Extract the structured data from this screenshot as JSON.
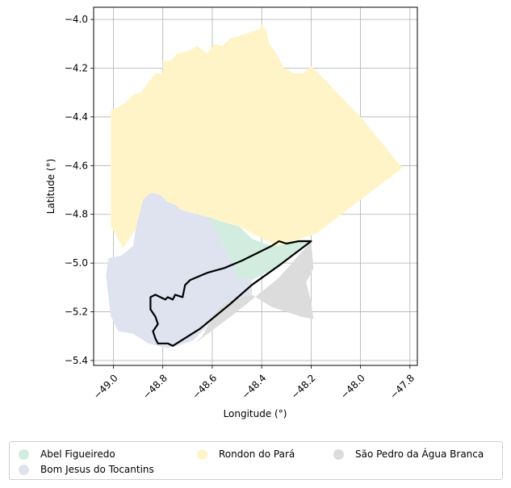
{
  "chart_data": {
    "type": "map",
    "xlabel": "Longitude (°)",
    "ylabel": "Latitude (°)",
    "xlim": [
      -49.08,
      -47.77
    ],
    "ylim": [
      -5.42,
      -3.95
    ],
    "xticks": [
      -49.0,
      -48.8,
      -48.6,
      -48.4,
      -48.2,
      -48.0,
      -47.8
    ],
    "xtick_labels": [
      "−49.0",
      "−48.8",
      "−48.6",
      "−48.4",
      "−48.2",
      "−48.0",
      "−47.8"
    ],
    "yticks": [
      -4.0,
      -4.2,
      -4.4,
      -4.6,
      -4.8,
      -5.0,
      -5.2,
      -5.4
    ],
    "ytick_labels": [
      "−4.0",
      "−4.2",
      "−4.4",
      "−4.6",
      "−4.8",
      "−5.0",
      "−5.2",
      "−5.4"
    ],
    "grid": true,
    "legend_position": "below",
    "regions": [
      {
        "name": "Rondon do Pará",
        "color": "#fff4c7",
        "polygon": [
          [
            -49.01,
            -4.37
          ],
          [
            -48.98,
            -4.36
          ],
          [
            -48.95,
            -4.34
          ],
          [
            -48.92,
            -4.31
          ],
          [
            -48.89,
            -4.3
          ],
          [
            -48.86,
            -4.26
          ],
          [
            -48.83,
            -4.22
          ],
          [
            -48.8,
            -4.22
          ],
          [
            -48.8,
            -4.17
          ],
          [
            -48.77,
            -4.17
          ],
          [
            -48.74,
            -4.14
          ],
          [
            -48.7,
            -4.13
          ],
          [
            -48.66,
            -4.11
          ],
          [
            -48.62,
            -4.14
          ],
          [
            -48.59,
            -4.1
          ],
          [
            -48.56,
            -4.11
          ],
          [
            -48.53,
            -4.08
          ],
          [
            -48.5,
            -4.07
          ],
          [
            -48.47,
            -4.06
          ],
          [
            -48.44,
            -4.05
          ],
          [
            -48.41,
            -4.04
          ],
          [
            -48.4,
            -4.02
          ],
          [
            -48.38,
            -4.05
          ],
          [
            -48.37,
            -4.1
          ],
          [
            -48.34,
            -4.14
          ],
          [
            -48.31,
            -4.2
          ],
          [
            -48.27,
            -4.22
          ],
          [
            -48.23,
            -4.22
          ],
          [
            -48.2,
            -4.19
          ],
          [
            -48.0,
            -4.4
          ],
          [
            -47.83,
            -4.61
          ],
          [
            -48.0,
            -4.74
          ],
          [
            -48.18,
            -4.88
          ],
          [
            -48.34,
            -4.93
          ],
          [
            -48.49,
            -4.85
          ],
          [
            -48.62,
            -4.81
          ],
          [
            -48.73,
            -4.78
          ],
          [
            -48.88,
            -4.74
          ],
          [
            -48.91,
            -4.86
          ],
          [
            -48.96,
            -4.94
          ],
          [
            -49.01,
            -4.85
          ]
        ]
      },
      {
        "name": "São Pedro da Água Branca",
        "color": "#dcdcdc",
        "polygon": [
          [
            -48.2,
            -4.91
          ],
          [
            -48.19,
            -5.02
          ],
          [
            -48.22,
            -5.08
          ],
          [
            -48.2,
            -5.16
          ],
          [
            -48.19,
            -5.23
          ],
          [
            -48.24,
            -5.22
          ],
          [
            -48.3,
            -5.2
          ],
          [
            -48.36,
            -5.18
          ],
          [
            -48.44,
            -5.13
          ],
          [
            -48.52,
            -5.15
          ],
          [
            -48.57,
            -5.18
          ],
          [
            -48.6,
            -5.22
          ],
          [
            -48.62,
            -5.26
          ],
          [
            -48.64,
            -5.3
          ],
          [
            -48.67,
            -5.33
          ],
          [
            -48.74,
            -5.34
          ],
          [
            -48.8,
            -5.35
          ],
          [
            -48.67,
            -5.33
          ],
          [
            -48.5,
            -5.2
          ],
          [
            -48.33,
            -5.06
          ]
        ]
      },
      {
        "name": "Abel Figueiredo",
        "color": "#d2eddf",
        "polygon": [
          [
            -48.62,
            -4.81
          ],
          [
            -48.56,
            -4.83
          ],
          [
            -48.49,
            -4.85
          ],
          [
            -48.44,
            -4.9
          ],
          [
            -48.39,
            -4.92
          ],
          [
            -48.34,
            -4.93
          ],
          [
            -48.27,
            -4.91
          ],
          [
            -48.2,
            -4.91
          ],
          [
            -48.31,
            -5.0
          ],
          [
            -48.44,
            -5.07
          ],
          [
            -48.5,
            -5.06
          ],
          [
            -48.52,
            -5.0
          ],
          [
            -48.55,
            -4.94
          ],
          [
            -48.58,
            -4.87
          ]
        ]
      },
      {
        "name": "Bom Jesus do Tocantins",
        "color": "#dfe3f0",
        "polygon": [
          [
            -48.88,
            -4.74
          ],
          [
            -48.85,
            -4.71
          ],
          [
            -48.81,
            -4.72
          ],
          [
            -48.78,
            -4.75
          ],
          [
            -48.75,
            -4.76
          ],
          [
            -48.73,
            -4.78
          ],
          [
            -48.66,
            -4.8
          ],
          [
            -48.62,
            -4.81
          ],
          [
            -48.58,
            -4.87
          ],
          [
            -48.55,
            -4.94
          ],
          [
            -48.52,
            -5.0
          ],
          [
            -48.5,
            -5.06
          ],
          [
            -48.44,
            -5.07
          ],
          [
            -48.44,
            -5.13
          ],
          [
            -48.52,
            -5.15
          ],
          [
            -48.58,
            -5.19
          ],
          [
            -48.63,
            -5.27
          ],
          [
            -48.68,
            -5.32
          ],
          [
            -48.78,
            -5.35
          ],
          [
            -48.86,
            -5.33
          ],
          [
            -48.92,
            -5.29
          ],
          [
            -48.98,
            -5.28
          ],
          [
            -49.01,
            -5.22
          ],
          [
            -49.02,
            -5.14
          ],
          [
            -49.03,
            -5.05
          ],
          [
            -49.02,
            -4.98
          ],
          [
            -48.97,
            -4.97
          ],
          [
            -48.92,
            -4.93
          ],
          [
            -48.91,
            -4.86
          ]
        ]
      }
    ],
    "outline": {
      "color": "#000000",
      "polygon": [
        [
          -48.2,
          -4.91
        ],
        [
          -48.25,
          -4.91
        ],
        [
          -48.3,
          -4.92
        ],
        [
          -48.33,
          -4.91
        ],
        [
          -48.36,
          -4.93
        ],
        [
          -48.4,
          -4.95
        ],
        [
          -48.48,
          -4.99
        ],
        [
          -48.55,
          -5.02
        ],
        [
          -48.62,
          -5.04
        ],
        [
          -48.69,
          -5.07
        ],
        [
          -48.71,
          -5.09
        ],
        [
          -48.72,
          -5.14
        ],
        [
          -48.75,
          -5.13
        ],
        [
          -48.76,
          -5.15
        ],
        [
          -48.78,
          -5.14
        ],
        [
          -48.79,
          -5.15
        ],
        [
          -48.83,
          -5.13
        ],
        [
          -48.85,
          -5.14
        ],
        [
          -48.85,
          -5.19
        ],
        [
          -48.83,
          -5.22
        ],
        [
          -48.82,
          -5.25
        ],
        [
          -48.84,
          -5.28
        ],
        [
          -48.83,
          -5.31
        ],
        [
          -48.82,
          -5.33
        ],
        [
          -48.78,
          -5.33
        ],
        [
          -48.76,
          -5.34
        ],
        [
          -48.65,
          -5.27
        ],
        [
          -48.53,
          -5.17
        ],
        [
          -48.44,
          -5.09
        ],
        [
          -48.33,
          -5.01
        ]
      ]
    }
  },
  "legend": {
    "items": [
      {
        "label": "Abel Figueiredo",
        "color": "#d2eddf"
      },
      {
        "label": "Bom Jesus do Tocantins",
        "color": "#dfe3f0"
      },
      {
        "label": "Rondon do Pará",
        "color": "#fff4c7"
      },
      {
        "label": "São Pedro da Água Branca",
        "color": "#dcdcdc"
      }
    ]
  }
}
